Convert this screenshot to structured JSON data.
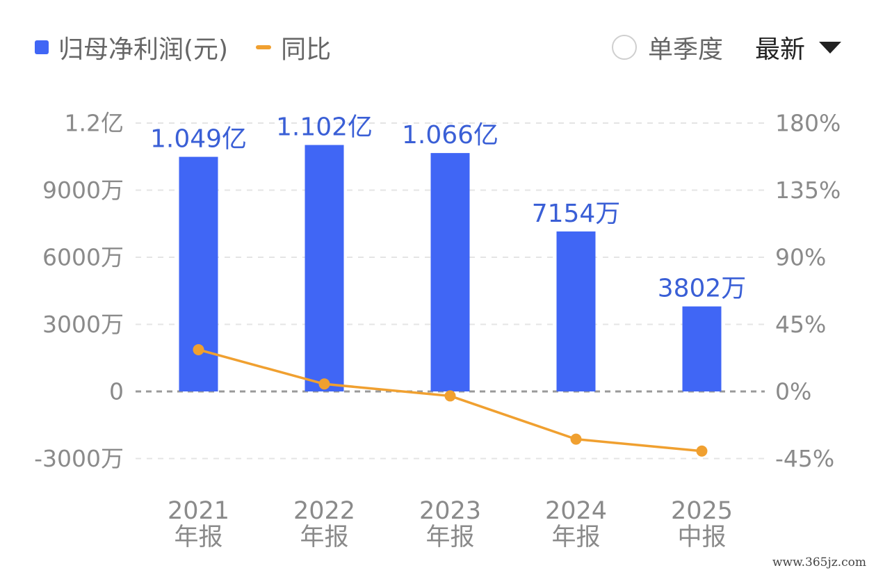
{
  "legend": {
    "bar_label": "归母净利润(元)",
    "line_label": "同比",
    "bar_color": "#4066f5",
    "line_color": "#f0a030"
  },
  "controls": {
    "single_quarter_label": "单季度",
    "select_value": "最新"
  },
  "watermark": "www.365jz.com",
  "chart_data": {
    "type": "bar",
    "categories": [
      [
        "2021",
        "年报"
      ],
      [
        "2022",
        "年报"
      ],
      [
        "2023",
        "年报"
      ],
      [
        "2024",
        "年报"
      ],
      [
        "2025",
        "中报"
      ]
    ],
    "series": [
      {
        "name": "归母净利润(元)",
        "type": "bar",
        "axis": "left",
        "values": [
          104900000,
          110200000,
          106600000,
          71540000,
          38020000
        ],
        "data_labels": [
          "1.049亿",
          "1.102亿",
          "1.066亿",
          "7154万",
          "3802万"
        ],
        "color": "#4066f5"
      },
      {
        "name": "同比",
        "type": "line",
        "axis": "right",
        "values": [
          28,
          5,
          -3,
          -32,
          -40
        ],
        "color": "#f0a030"
      }
    ],
    "y_left": {
      "min": -30000000,
      "max": 120000000,
      "ticks": [
        120000000,
        90000000,
        60000000,
        30000000,
        0,
        -30000000
      ],
      "tick_labels": [
        "1.2亿",
        "9000万",
        "6000万",
        "3000万",
        "0",
        "-3000万"
      ]
    },
    "y_right": {
      "min": -45,
      "max": 180,
      "ticks": [
        180,
        135,
        90,
        45,
        0,
        -45
      ],
      "tick_labels": [
        "180%",
        "135%",
        "90%",
        "45%",
        "0%",
        "-45%"
      ]
    },
    "grid": "dashed-horizontal",
    "legend_position": "top-left"
  }
}
